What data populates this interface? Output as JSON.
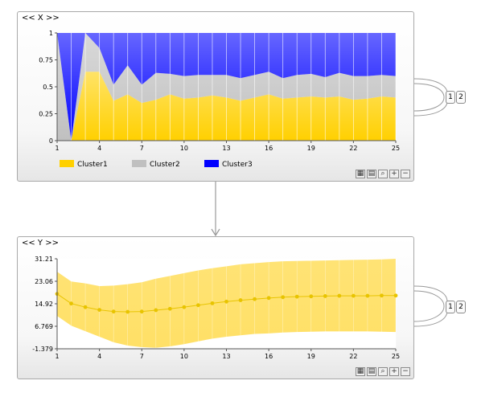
{
  "panels": {
    "x": {
      "title": "<< X >>"
    },
    "y": {
      "title": "<< Y >>"
    }
  },
  "toolbar_icons": [
    "grid-icon",
    "list-icon",
    "zoom-icon",
    "zoom-in-icon",
    "zoom-out-icon"
  ],
  "side_buttons": {
    "one": "1",
    "two": "2"
  },
  "colors": {
    "cluster1": "#ffd000",
    "cluster2": "#c0c0c0",
    "cluster3": "#0000ff",
    "band": "#ffe066",
    "line": "#e8c400"
  },
  "chart_data": [
    {
      "type": "area",
      "x": [
        1,
        2,
        3,
        4,
        5,
        6,
        7,
        8,
        9,
        10,
        11,
        12,
        13,
        14,
        15,
        16,
        17,
        18,
        19,
        20,
        21,
        22,
        23,
        24,
        25
      ],
      "xticks": [
        "1",
        "4",
        "7",
        "10",
        "13",
        "16",
        "19",
        "22",
        "25"
      ],
      "yticks": [
        "0",
        "0.25",
        "0.5",
        "0.75",
        "1"
      ],
      "ylim": [
        0,
        1
      ],
      "series": [
        {
          "name": "Cluster1",
          "values": [
            0,
            0,
            0.64,
            0.64,
            0.37,
            0.43,
            0.35,
            0.38,
            0.43,
            0.39,
            0.4,
            0.42,
            0.4,
            0.37,
            0.4,
            0.43,
            0.39,
            0.4,
            0.41,
            0.4,
            0.41,
            0.38,
            0.39,
            0.41,
            0.4
          ]
        },
        {
          "name": "Cluster2",
          "values": [
            1,
            0,
            0.36,
            0.22,
            0.15,
            0.27,
            0.17,
            0.25,
            0.19,
            0.21,
            0.21,
            0.19,
            0.21,
            0.21,
            0.21,
            0.21,
            0.19,
            0.21,
            0.21,
            0.19,
            0.22,
            0.22,
            0.21,
            0.2,
            0.2
          ]
        },
        {
          "name": "Cluster3",
          "values": [
            0,
            1,
            0,
            0.14,
            0.48,
            0.3,
            0.48,
            0.37,
            0.38,
            0.4,
            0.39,
            0.39,
            0.39,
            0.42,
            0.39,
            0.36,
            0.42,
            0.39,
            0.38,
            0.41,
            0.37,
            0.4,
            0.4,
            0.39,
            0.4
          ]
        }
      ],
      "legend": [
        "Cluster1",
        "Cluster2",
        "Cluster3"
      ]
    },
    {
      "type": "line",
      "x": [
        1,
        2,
        3,
        4,
        5,
        6,
        7,
        8,
        9,
        10,
        11,
        12,
        13,
        14,
        15,
        16,
        17,
        18,
        19,
        20,
        21,
        22,
        23,
        24,
        25
      ],
      "yticks": [
        "-1.379",
        "6.769",
        "14.92",
        "23.06",
        "31.21"
      ],
      "xticks": [
        "1",
        "4",
        "7",
        "10",
        "13",
        "16",
        "19",
        "22",
        "25"
      ],
      "ylim": [
        -1.379,
        31.21
      ],
      "mean": [
        18.5,
        15.0,
        13.7,
        12.7,
        12.1,
        12.0,
        12.1,
        12.6,
        13.1,
        13.7,
        14.4,
        15.1,
        15.7,
        16.2,
        16.6,
        17.0,
        17.3,
        17.5,
        17.6,
        17.7,
        17.8,
        17.8,
        17.8,
        17.9,
        17.9
      ],
      "upper": [
        26.5,
        23.0,
        22.3,
        21.3,
        21.5,
        22.0,
        22.7,
        24.0,
        25.0,
        26.0,
        27.0,
        27.8,
        28.5,
        29.2,
        29.6,
        30.0,
        30.3,
        30.4,
        30.5,
        30.6,
        30.7,
        30.8,
        30.9,
        31.0,
        31.2
      ],
      "lower": [
        10.5,
        7.0,
        5.0,
        3.0,
        1.0,
        -0.2,
        -0.8,
        -1.0,
        -0.5,
        0.3,
        1.3,
        2.3,
        3.0,
        3.5,
        4.0,
        4.2,
        4.5,
        4.7,
        4.8,
        4.9,
        4.9,
        4.9,
        4.9,
        4.8,
        4.7
      ]
    }
  ]
}
